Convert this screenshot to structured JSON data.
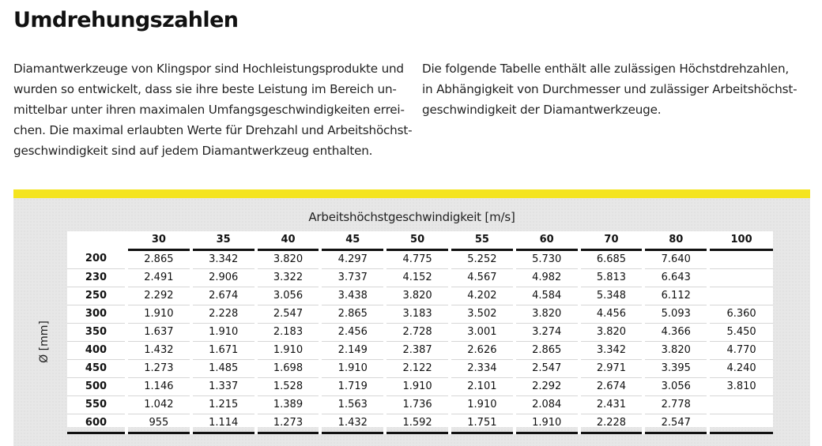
{
  "title": "Umdrehungszahlen",
  "intro_left": [
    "Diamantwerkzeuge von Klingspor sind Hochleistungsprodukte und",
    "wurden so entwickelt, dass sie ihre beste Leistung im Bereich un-",
    "mittelbar unter ihren maximalen Umfangsgeschwindigkeiten errei-",
    "chen. Die maximal erlaubten Werte für Drehzahl und Arbeitshöchst-",
    "geschwindigkeit sind auf jedem Diamantwerkzeug enthalten."
  ],
  "intro_right": [
    "Die folgende Tabelle enthält alle zulässigen Höchstdrehzahlen,",
    "in Abhängigkeit von Durchmesser und zulässiger Arbeitshöchst-",
    "geschwindigkeit der Diamantwerkzeuge."
  ],
  "table": {
    "column_caption": "Arbeitshöchstgeschwindigkeit [m/s]",
    "row_caption": "Ø [mm]",
    "speeds": [
      "30",
      "35",
      "40",
      "45",
      "50",
      "55",
      "60",
      "70",
      "80",
      "100"
    ],
    "rows": [
      {
        "diameter": "200",
        "values": [
          "2.865",
          "3.342",
          "3.820",
          "4.297",
          "4.775",
          "5.252",
          "5.730",
          "6.685",
          "7.640",
          ""
        ]
      },
      {
        "diameter": "230",
        "values": [
          "2.491",
          "2.906",
          "3.322",
          "3.737",
          "4.152",
          "4.567",
          "4.982",
          "5.813",
          "6.643",
          ""
        ]
      },
      {
        "diameter": "250",
        "values": [
          "2.292",
          "2.674",
          "3.056",
          "3.438",
          "3.820",
          "4.202",
          "4.584",
          "5.348",
          "6.112",
          ""
        ]
      },
      {
        "diameter": "300",
        "values": [
          "1.910",
          "2.228",
          "2.547",
          "2.865",
          "3.183",
          "3.502",
          "3.820",
          "4.456",
          "5.093",
          "6.360"
        ]
      },
      {
        "diameter": "350",
        "values": [
          "1.637",
          "1.910",
          "2.183",
          "2.456",
          "2.728",
          "3.001",
          "3.274",
          "3.820",
          "4.366",
          "5.450"
        ]
      },
      {
        "diameter": "400",
        "values": [
          "1.432",
          "1.671",
          "1.910",
          "2.149",
          "2.387",
          "2.626",
          "2.865",
          "3.342",
          "3.820",
          "4.770"
        ]
      },
      {
        "diameter": "450",
        "values": [
          "1.273",
          "1.485",
          "1.698",
          "1.910",
          "2.122",
          "2.334",
          "2.547",
          "2.971",
          "3.395",
          "4.240"
        ]
      },
      {
        "diameter": "500",
        "values": [
          "1.146",
          "1.337",
          "1.528",
          "1.719",
          "1.910",
          "2.101",
          "2.292",
          "2.674",
          "3.056",
          "3.810"
        ]
      },
      {
        "diameter": "550",
        "values": [
          "1.042",
          "1.215",
          "1.389",
          "1.563",
          "1.736",
          "1.910",
          "2.084",
          "2.431",
          "2.778",
          ""
        ]
      },
      {
        "diameter": "600",
        "values": [
          "955",
          "1.114",
          "1.273",
          "1.432",
          "1.592",
          "1.751",
          "1.910",
          "2.228",
          "2.547",
          ""
        ]
      }
    ]
  },
  "colors": {
    "accent_bar": "#f4e41f",
    "panel_background": "#e7e7e7",
    "rule": "#111111"
  }
}
